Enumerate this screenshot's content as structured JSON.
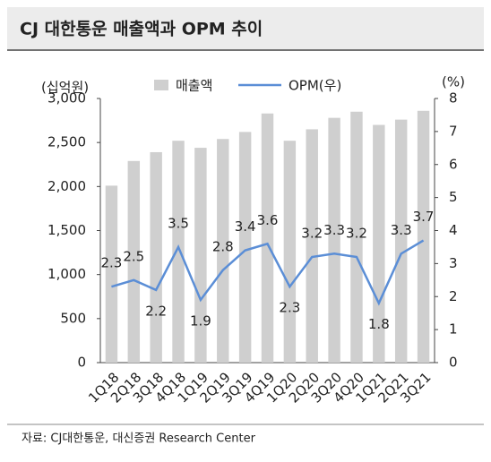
{
  "chart_data": {
    "type": "bar",
    "title": "CJ 대한통운 매출액과 OPM 추이",
    "y_label": "(십억원)",
    "y2_label": "(%)",
    "source": "자료: CJ대한통운, 대신증권 Research Center",
    "legend": "top",
    "categories": [
      "1Q18",
      "2Q18",
      "3Q18",
      "4Q18",
      "1Q19",
      "2Q19",
      "3Q19",
      "4Q19",
      "1Q20",
      "2Q20",
      "3Q20",
      "4Q20",
      "1Q21",
      "2Q21",
      "3Q21"
    ],
    "series": [
      {
        "name": "매출액",
        "type": "bar",
        "color": "#cfcfcf",
        "values": [
          2010,
          2290,
          2390,
          2520,
          2440,
          2540,
          2620,
          2830,
          2520,
          2650,
          2780,
          2850,
          2700,
          2760,
          2860
        ]
      },
      {
        "name": "OPM(우)",
        "type": "line",
        "axis": "y2",
        "color": "#5b8ed6",
        "values": [
          2.3,
          2.5,
          2.2,
          3.5,
          1.9,
          2.8,
          3.4,
          3.6,
          2.3,
          3.2,
          3.3,
          3.2,
          1.8,
          3.3,
          3.7
        ]
      }
    ],
    "ylim": [
      0,
      3000
    ],
    "yticks": [
      0,
      500,
      {
        "value": 1000,
        "label": "1,000"
      },
      {
        "value": 1500,
        "label": "1,500"
      },
      {
        "value": 2000,
        "label": "2,000"
      },
      {
        "value": 2500,
        "label": "2,500"
      },
      {
        "value": 3000,
        "label": "3,000"
      }
    ],
    "y2lim": [
      0,
      8
    ],
    "y2ticks": [
      0,
      1,
      2,
      3,
      4,
      5,
      6,
      7,
      8
    ]
  }
}
